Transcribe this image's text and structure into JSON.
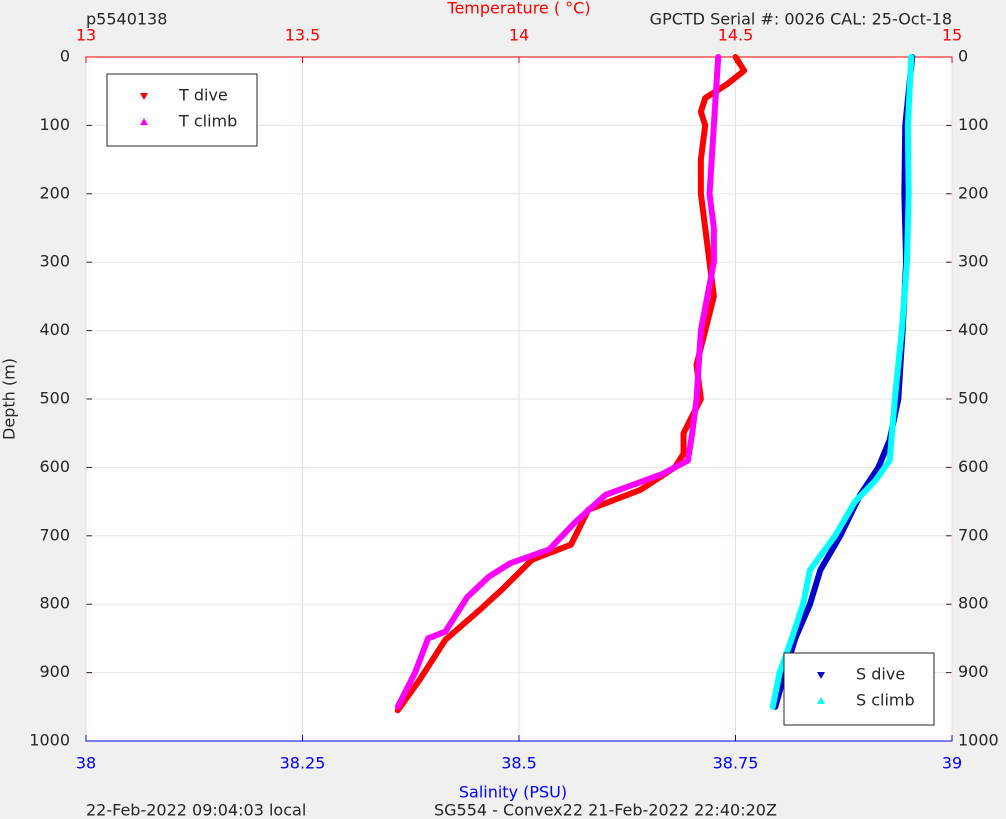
{
  "chart_data": {
    "type": "line",
    "title_left": "p5540138",
    "title_right": "GPCTD Serial #: 0026 CAL: 25-Oct-18",
    "xlabel_top": "Temperature (    °C)",
    "xlabel_bottom": "Salinity (PSU)",
    "ylabel": "Depth (m)",
    "footer_left": "22-Feb-2022 09:04:03 local",
    "footer_right": "SG554 - Convex22 21-Feb-2022 22:40:20Z",
    "xlim": [
      13,
      15
    ],
    "xticks": [
      13,
      13.5,
      14,
      14.5,
      15
    ],
    "xcolor": "#ff0000",
    "x2lim": [
      38,
      39
    ],
    "x2ticks": [
      38,
      38.25,
      38.5,
      38.75,
      39
    ],
    "x2color": "#0000ff",
    "ylim": [
      0,
      1000
    ],
    "yticks": [
      0,
      100,
      200,
      300,
      400,
      500,
      600,
      700,
      800,
      900,
      1000
    ],
    "yreverse": true,
    "grid": true,
    "series": [
      {
        "name": "T dive",
        "color": "#ff0000",
        "axis": "x",
        "marker": "down",
        "legend": "upper left",
        "x": [
          14.5,
          14.52,
          14.48,
          14.43,
          14.42,
          14.43,
          14.42,
          14.42,
          14.43,
          14.44,
          14.45,
          14.43,
          14.41,
          14.42,
          14.38,
          14.38,
          14.36,
          14.28,
          14.16,
          14.12,
          14.03,
          13.96,
          13.91,
          13.83,
          13.77,
          13.72
        ],
        "y": [
          0,
          20,
          40,
          60,
          80,
          100,
          150,
          200,
          250,
          300,
          350,
          400,
          450,
          500,
          550,
          580,
          600,
          633,
          662,
          713,
          735,
          779,
          808,
          852,
          911,
          955
        ]
      },
      {
        "name": "T climb",
        "color": "#ff00ff",
        "axis": "x",
        "marker": "up",
        "legend": "upper left",
        "x": [
          14.46,
          14.45,
          14.44,
          14.45,
          14.45,
          14.42,
          14.41,
          14.4,
          14.39,
          14.33,
          14.2,
          14.13,
          14.07,
          13.98,
          13.93,
          13.88,
          13.83,
          13.79,
          13.76,
          13.72
        ],
        "y": [
          0,
          100,
          200,
          250,
          300,
          400,
          500,
          550,
          590,
          610,
          640,
          680,
          720,
          740,
          760,
          790,
          840,
          850,
          900,
          950
        ]
      },
      {
        "name": "S dive",
        "color": "#0000cc",
        "axis": "x2",
        "marker": "down",
        "legend": "lower right",
        "x": [
          38.954,
          38.946,
          38.945,
          38.947,
          38.943,
          38.938,
          38.928,
          38.915,
          38.894,
          38.871,
          38.848,
          38.836,
          38.819,
          38.807,
          38.796
        ],
        "y": [
          0,
          100,
          200,
          300,
          400,
          500,
          560,
          600,
          640,
          700,
          750,
          800,
          850,
          900,
          950
        ]
      },
      {
        "name": "S climb",
        "color": "#00ffff",
        "axis": "x2",
        "marker": "up",
        "legend": "lower right",
        "x": [
          38.953,
          38.949,
          38.95,
          38.948,
          38.942,
          38.934,
          38.928,
          38.911,
          38.888,
          38.865,
          38.836,
          38.828,
          38.815,
          38.801,
          38.793
        ],
        "y": [
          0,
          100,
          200,
          300,
          400,
          500,
          590,
          620,
          650,
          700,
          750,
          800,
          850,
          900,
          950
        ]
      }
    ]
  }
}
